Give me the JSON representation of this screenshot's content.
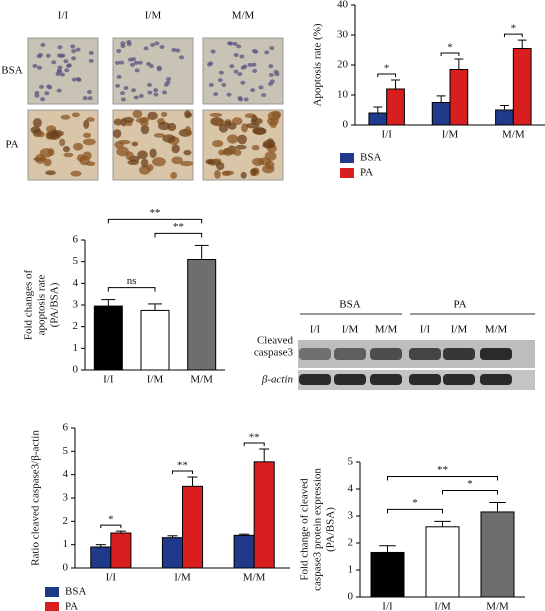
{
  "images": {
    "columns": [
      "I/I",
      "I/M",
      "M/M"
    ],
    "rows": [
      "BSA",
      "PA"
    ]
  },
  "blot": {
    "groups": [
      "BSA",
      "PA"
    ],
    "lanes": [
      "I/I",
      "I/M",
      "M/M",
      "I/I",
      "I/M",
      "M/M"
    ],
    "rows": [
      [
        "Cleaved",
        "caspase3"
      ],
      [
        "β-actin"
      ]
    ]
  },
  "chart_data": [
    {
      "type": "bar",
      "ylabel": [
        "Apoptosis rate (%)"
      ],
      "categories": [
        "I/I",
        "I/M",
        "M/M"
      ],
      "series": [
        {
          "name": "BSA",
          "color": "#1f3a8a",
          "values": [
            4,
            7.5,
            5
          ],
          "errors": [
            2,
            2.2,
            1.5
          ]
        },
        {
          "name": "PA",
          "color": "#d81e1e",
          "values": [
            12,
            18.5,
            25.5
          ],
          "errors": [
            3,
            3.5,
            2.8
          ]
        }
      ],
      "significance": [
        "*",
        "*",
        "*"
      ],
      "ylim": [
        0,
        40
      ],
      "yticks": [
        0,
        10,
        20,
        30,
        40
      ]
    },
    {
      "type": "bar",
      "ylabel": [
        "Fold changes of",
        "apoptosis rate",
        "(PA/BSA)"
      ],
      "categories": [
        "I/I",
        "I/M",
        "M/M"
      ],
      "values": [
        2.95,
        2.75,
        5.1
      ],
      "errors": [
        0.3,
        0.3,
        0.65
      ],
      "colors": [
        "#000000",
        "#ffffff",
        "#6e6e6e"
      ],
      "comparisons": [
        {
          "pair": [
            0,
            1
          ],
          "label": "ns"
        },
        {
          "pair": [
            1,
            2
          ],
          "label": "**"
        },
        {
          "pair": [
            0,
            2
          ],
          "label": "**"
        }
      ],
      "ylim": [
        0,
        6
      ],
      "yticks": [
        0,
        1,
        2,
        3,
        4,
        5,
        6
      ]
    },
    {
      "type": "bar",
      "ylabel": [
        "Ratio cleaved caspase3/β-actin"
      ],
      "categories": [
        "I/I",
        "I/M",
        "M/M"
      ],
      "series": [
        {
          "name": "BSA",
          "color": "#1f3a8a",
          "values": [
            0.9,
            1.3,
            1.4
          ],
          "errors": [
            0.1,
            0.08,
            0.05
          ]
        },
        {
          "name": "PA",
          "color": "#d81e1e",
          "values": [
            1.5,
            3.5,
            4.55
          ],
          "errors": [
            0.08,
            0.4,
            0.55
          ]
        }
      ],
      "significance": [
        "*",
        "**",
        "**"
      ],
      "ylim": [
        0,
        6
      ],
      "yticks": [
        0,
        1,
        2,
        3,
        4,
        5,
        6
      ]
    },
    {
      "type": "bar",
      "ylabel": [
        "Fold change of cleaved",
        "caspase3 protein expression",
        "(PA/BSA)"
      ],
      "categories": [
        "I/I",
        "I/M",
        "M/M"
      ],
      "values": [
        1.65,
        2.6,
        3.15
      ],
      "errors": [
        0.25,
        0.2,
        0.35
      ],
      "colors": [
        "#000000",
        "#ffffff",
        "#6e6e6e"
      ],
      "comparisons": [
        {
          "pair": [
            0,
            1
          ],
          "label": "*"
        },
        {
          "pair": [
            1,
            2
          ],
          "label": "*"
        },
        {
          "pair": [
            0,
            2
          ],
          "label": "**"
        }
      ],
      "ylim": [
        0,
        5
      ],
      "yticks": [
        0,
        1,
        2,
        3,
        4,
        5
      ]
    }
  ]
}
